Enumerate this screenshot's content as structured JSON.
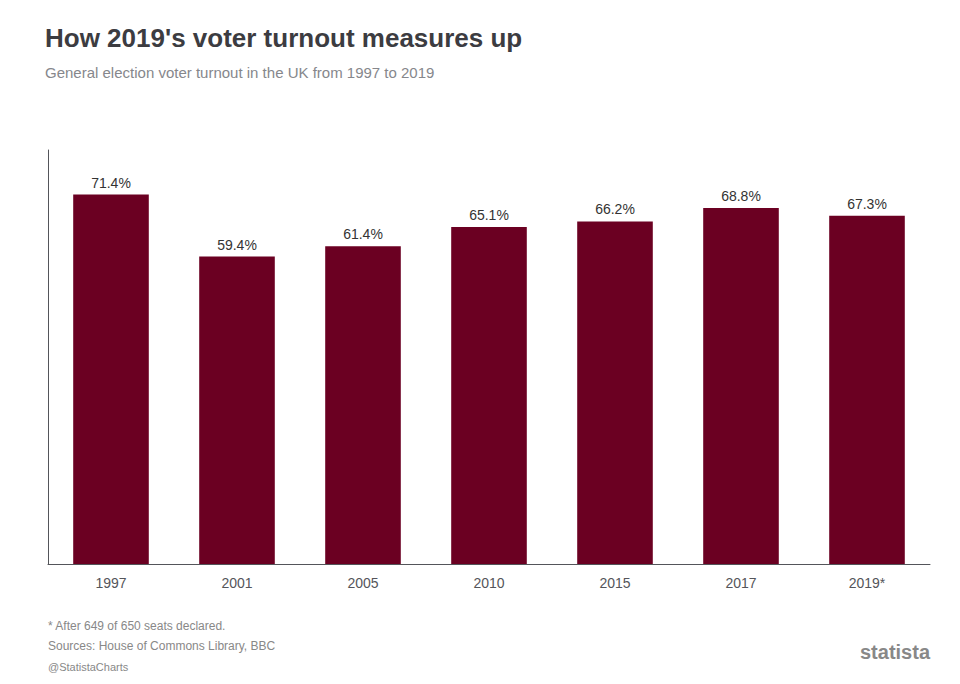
{
  "chart_data": {
    "type": "bar",
    "title": "How 2019's voter turnout measures up",
    "subtitle": "General election voter turnout in the UK from 1997 to 2019",
    "categories": [
      "1997",
      "2001",
      "2005",
      "2010",
      "2015",
      "2017",
      "2019*"
    ],
    "values": [
      71.4,
      59.4,
      61.4,
      65.1,
      66.2,
      68.8,
      67.3
    ],
    "value_labels": [
      "71.4%",
      "59.4%",
      "61.4%",
      "65.1%",
      "66.2%",
      "68.8%",
      "67.3%"
    ],
    "data_labels": true,
    "color": "#6b0022",
    "ylim": [
      0,
      80
    ],
    "tick_labels": "x",
    "grid": false,
    "annotations": [
      "* After 649 of 650 seats declared.",
      "Sources: House of Commons Library, BBC",
      "@StatistaCharts",
      "statista"
    ]
  }
}
